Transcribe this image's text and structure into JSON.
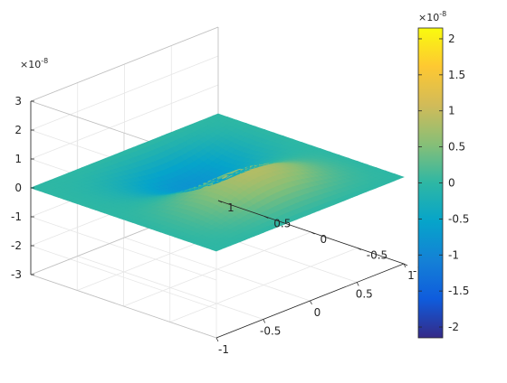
{
  "chart_data": {
    "type": "surface",
    "title": "",
    "xlabel": "",
    "ylabel": "",
    "zlabel": "",
    "x_range": [
      -1,
      1
    ],
    "y_range": [
      -1,
      1
    ],
    "z_range": [
      -3e-08,
      3e-08
    ],
    "x_ticks": [
      -1,
      -0.5,
      0,
      0.5,
      1
    ],
    "x_tick_labels": [
      "-1",
      "-0.5",
      "0",
      "0.5",
      "1"
    ],
    "y_ticks": [
      -1,
      -0.5,
      0,
      0.5,
      1
    ],
    "y_tick_labels": [
      "-1",
      "-0.5",
      "0",
      "0.5",
      "1"
    ],
    "z_ticks": [
      -3,
      -2,
      -1,
      0,
      1,
      2,
      3
    ],
    "z_tick_labels": [
      "-3",
      "-2",
      "-1",
      "0",
      "1",
      "2",
      "3"
    ],
    "z_exponent_label": "×10",
    "z_exponent_power": "-8",
    "grid": true,
    "colormap": "parula",
    "colormap_stops": [
      "#352a87",
      "#0f5cdd",
      "#1481d6",
      "#06a4ca",
      "#2eb7a4",
      "#87bf77",
      "#d1bb59",
      "#fec832",
      "#f9fb0e"
    ],
    "surface_peak_value": 1.1e-08,
    "surface_trough_value": -1.1e-08,
    "colorbar": {
      "range": [
        -2.15e-08,
        2.15e-08
      ],
      "ticks": [
        -2,
        -1.5,
        -1,
        -0.5,
        0,
        0.5,
        1,
        1.5,
        2
      ],
      "tick_labels": [
        "-2",
        "-1.5",
        "-1",
        "-0.5",
        "0",
        "0.5",
        "1",
        "1.5",
        "2"
      ],
      "exponent_label": "×10",
      "exponent_power": "-8",
      "location": "right"
    }
  }
}
